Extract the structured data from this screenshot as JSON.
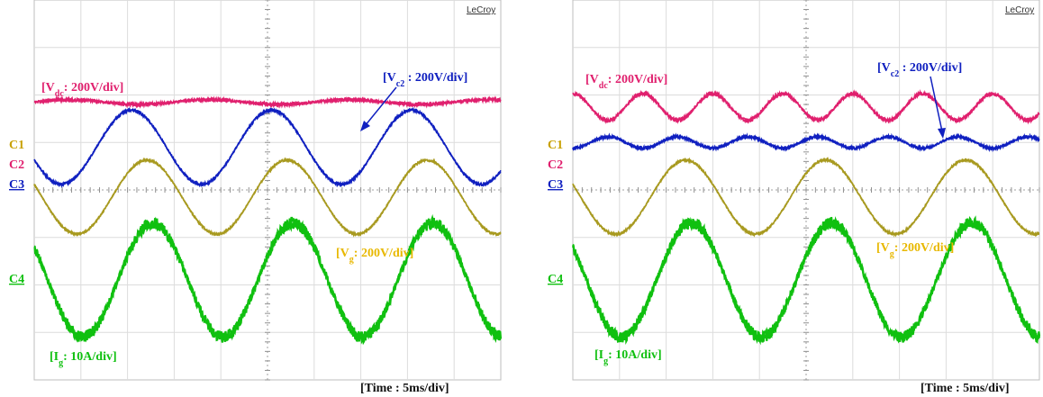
{
  "chart_data": [
    {
      "type": "line",
      "panel": "left",
      "brand": "LeCroy",
      "time_label": "[Time : 5ms/div]",
      "channels": [
        {
          "name": "C1",
          "color": "#c8a000"
        },
        {
          "name": "C2",
          "color": "#e0206e"
        },
        {
          "name": "C3",
          "color": "#1020c0"
        },
        {
          "name": "C4",
          "color": "#10c010"
        }
      ],
      "annotations": {
        "vdc": {
          "base": "[V",
          "sub": "dc",
          "rest": ": 200V/div]"
        },
        "vc2": {
          "base": "[V",
          "sub": "c2",
          "rest": " : 200V/div]"
        },
        "vg": {
          "base": "[V",
          "sub": "g",
          "rest": ": 200V/div]"
        },
        "ig": {
          "base": "[I",
          "sub": "g",
          "rest": ": 10A/div]"
        }
      },
      "x_divisions": 10,
      "y_divisions": 8,
      "series": [
        {
          "channel": "C2",
          "color": "#e0206e",
          "offset_div": 1.85,
          "amplitude_div": 0.05,
          "period_div": 3.0,
          "phase_deg": 0,
          "noise_div": 0.04
        },
        {
          "channel": "C3",
          "color": "#1020c0",
          "offset_div": 0.9,
          "amplitude_div": 0.78,
          "period_div": 3.0,
          "phase_deg": 200,
          "noise_div": 0.03
        },
        {
          "channel": "C1",
          "color": "#a89a20",
          "offset_div": -0.15,
          "amplitude_div": 0.78,
          "period_div": 3.0,
          "phase_deg": 160,
          "noise_div": 0.025
        },
        {
          "channel": "C4",
          "color": "#10c010",
          "offset_div": -1.9,
          "amplitude_div": 1.2,
          "period_div": 3.0,
          "phase_deg": 145,
          "noise_div": 0.12
        }
      ]
    },
    {
      "type": "line",
      "panel": "right",
      "brand": "LeCroy",
      "time_label": "[Time : 5ms/div]",
      "channels": [
        {
          "name": "C1",
          "color": "#c8a000"
        },
        {
          "name": "C2",
          "color": "#e0206e"
        },
        {
          "name": "C3",
          "color": "#1020c0"
        },
        {
          "name": "C4",
          "color": "#10c010"
        }
      ],
      "annotations": {
        "vdc": {
          "base": "[V",
          "sub": "dc",
          "rest": ": 200V/div]"
        },
        "vc2": {
          "base": "[V",
          "sub": "c2",
          "rest": " : 200V/div]"
        },
        "vg": {
          "base": "[V",
          "sub": "g",
          "rest": ": 200V/div]"
        },
        "ig": {
          "base": "[I",
          "sub": "g",
          "rest": ": 10A/div]"
        }
      },
      "x_divisions": 10,
      "y_divisions": 8,
      "series": [
        {
          "channel": "C2",
          "color": "#e0206e",
          "offset_div": 1.75,
          "amplitude_div": 0.28,
          "period_div": 1.5,
          "phase_deg": 90,
          "noise_div": 0.04
        },
        {
          "channel": "C3",
          "color": "#1020c0",
          "offset_div": 1.0,
          "amplitude_div": 0.12,
          "period_div": 1.5,
          "phase_deg": 270,
          "noise_div": 0.035
        },
        {
          "channel": "C1",
          "color": "#a89a20",
          "offset_div": -0.15,
          "amplitude_div": 0.78,
          "period_div": 3.0,
          "phase_deg": 160,
          "noise_div": 0.025
        },
        {
          "channel": "C4",
          "color": "#10c010",
          "offset_div": -1.9,
          "amplitude_div": 1.2,
          "period_div": 3.0,
          "phase_deg": 145,
          "noise_div": 0.12
        }
      ]
    }
  ]
}
